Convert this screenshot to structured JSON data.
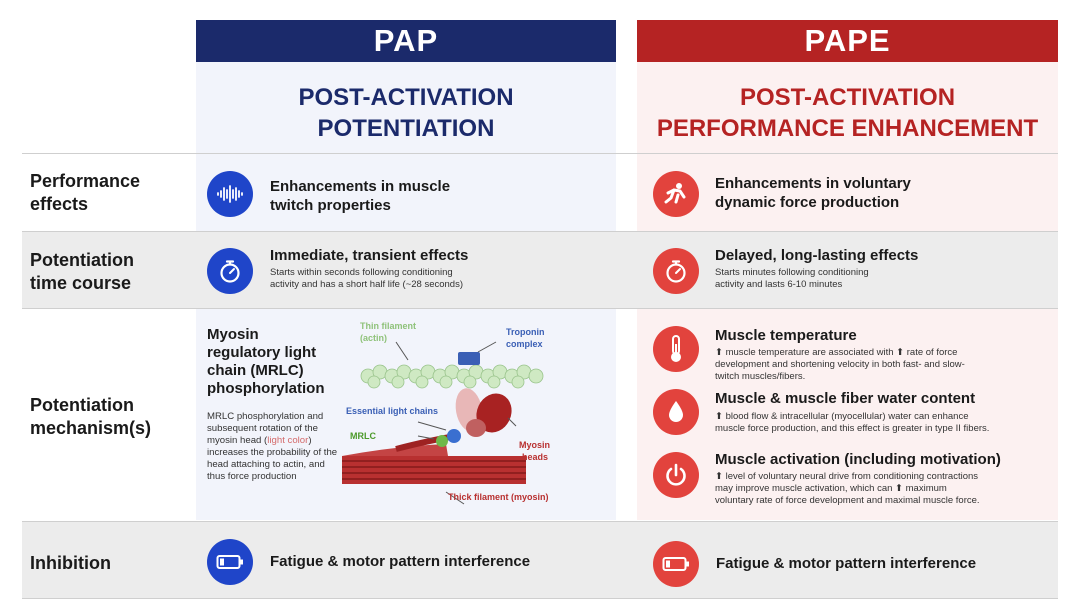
{
  "columns": {
    "pap": {
      "header": "PAP",
      "title_line1": "POST-ACTIVATION",
      "title_line2": "POTENTIATION",
      "color": "#1b2a6b"
    },
    "pape": {
      "header": "PAPE",
      "title_line1": "POST-ACTIVATION",
      "title_line2": "PERFORMANCE ENHANCEMENT",
      "color": "#b52323"
    }
  },
  "rows": {
    "performance": {
      "label_line1": "Performance",
      "label_line2": "effects",
      "pap": {
        "icon": "sound-wave-icon",
        "title_line1": "Enhancements in muscle",
        "title_line2": "twitch properties"
      },
      "pape": {
        "icon": "sprinter-icon",
        "title_line1": "Enhancements in voluntary",
        "title_line2": "dynamic force production"
      }
    },
    "time_course": {
      "label_line1": "Potentiation",
      "label_line2": "time course",
      "pap": {
        "icon": "stopwatch-icon",
        "title": "Immediate, transient effects",
        "desc_line1": "Starts within seconds following conditioning",
        "desc_line2": "activity and has a short half life (~28 seconds)"
      },
      "pape": {
        "icon": "stopwatch-icon",
        "title": "Delayed, long-lasting effects",
        "desc_line1": "Starts minutes following conditioning",
        "desc_line2": "activity and lasts 6-10 minutes"
      }
    },
    "mechanism": {
      "label_line1": "Potentiation",
      "label_line2": "mechanism(s)",
      "pap": {
        "title_line1": "Myosin",
        "title_line2": "regulatory light",
        "title_line3": "chain (MRLC)",
        "title_line4": "phosphorylation",
        "desc_part1": "MRLC phosphorylation and subsequent rotation of the myosin head (",
        "desc_highlight": "light color",
        "desc_part2": ") increases the probability of the head attaching to actin, and thus force production",
        "diagram": {
          "thin_filament_line1": "Thin filament",
          "thin_filament_line2": "(actin)",
          "troponin_line1": "Troponin",
          "troponin_line2": "complex",
          "essential_light_chains": "Essential light chains",
          "mrlc": "MRLC",
          "myosin_heads_line1": "Myosin",
          "myosin_heads_line2": "heads",
          "thick_filament": "Thick filament (myosin)"
        }
      },
      "pape": [
        {
          "icon": "thermometer-icon",
          "title": "Muscle temperature",
          "desc_line1": "⬆ muscle temperature are associated with ⬆ rate of force",
          "desc_line2": "development and shortening velocity in both fast- and slow-",
          "desc_line3": "twitch muscles/fibers."
        },
        {
          "icon": "water-drop-icon",
          "title": "Muscle & muscle fiber water content",
          "desc_line1": "⬆ blood flow & intracellular (myocellular) water can enhance",
          "desc_line2": "muscle force production, and this effect is greater in type II fibers."
        },
        {
          "icon": "power-icon",
          "title": "Muscle activation (including motivation)",
          "desc_line1": "⬆ level of voluntary neural drive from conditioning contractions",
          "desc_line2": "may improve muscle activation, which can ⬆ maximum",
          "desc_line3": "voluntary rate of force development and maximal muscle force."
        }
      ]
    },
    "inhibition": {
      "label": "Inhibition",
      "pap": {
        "icon": "low-battery-icon",
        "title": "Fatigue & motor pattern interference"
      },
      "pape": {
        "icon": "low-battery-icon",
        "title": "Fatigue & motor pattern interference"
      }
    }
  }
}
